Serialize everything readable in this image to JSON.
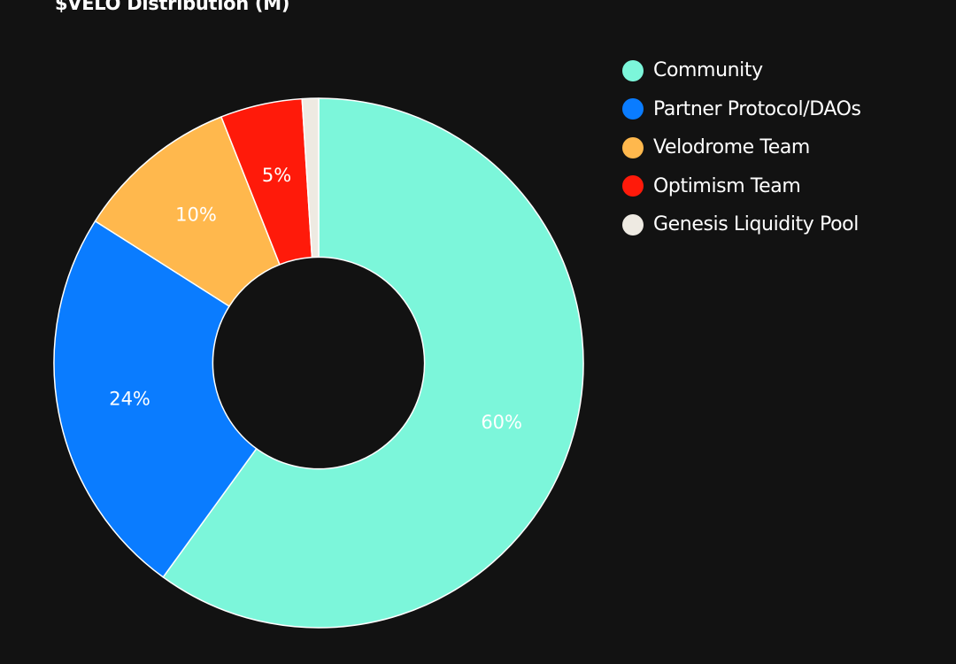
{
  "chart_data": {
    "type": "pie",
    "title": "$VELO Distribution (M)",
    "inner_radius_ratio": 0.4,
    "legend_position": "top-right",
    "slices": [
      {
        "label": "Community",
        "value": 60,
        "value_label": "60%",
        "color": "#7CF6DA"
      },
      {
        "label": "Partner Protocol/DAOs",
        "value": 24,
        "value_label": "24%",
        "color": "#0A7CFF"
      },
      {
        "label": "Velodrome Team",
        "value": 10,
        "value_label": "10%",
        "color": "#FFB84D"
      },
      {
        "label": "Optimism Team",
        "value": 5,
        "value_label": "5%",
        "color": "#FF1A0A"
      },
      {
        "label": "Genesis Liquidity Pool",
        "value": 1,
        "value_label": "",
        "color": "#EEEAE2"
      }
    ]
  }
}
